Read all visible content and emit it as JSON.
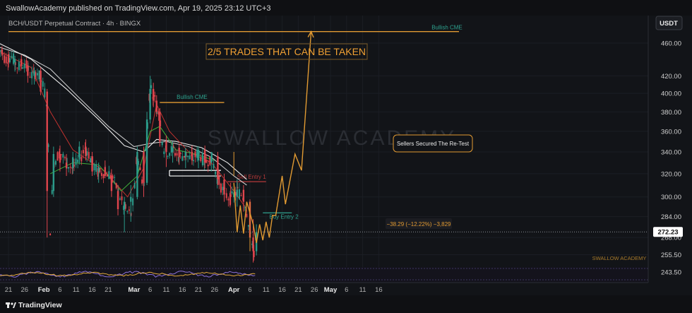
{
  "header": {
    "publisher_line": "SwallowAcademy published on TradingView.com, Apr 19, 2025 23:12 UTC+3",
    "symbol_line": "BCH/USDT Perpetual Contract · 4h · BINGX",
    "currency_button": "USDT"
  },
  "footer": {
    "brand": "TradingView"
  },
  "colors": {
    "background": "#121418",
    "candle_up": "#2b9b8a",
    "candle_down": "#e0454d",
    "ema_white": "#e8e8e8",
    "ema_red": "#c0322f",
    "ema_green": "#3fae3a",
    "projection": "#e19a32",
    "cme": "#2ea28f",
    "title_orange": "#f0a033",
    "level_white": "#ffffff",
    "sell_level": "#b73a3a",
    "buy_level": "#2ea28f"
  },
  "chart_data": {
    "type": "candlestick",
    "title": "2/5 TRADES THAT CAN BE TAKEN",
    "y_axis": {
      "ticks": [
        460.0,
        420.0,
        400.0,
        380.0,
        360.0,
        340.0,
        320.0,
        300.0,
        284.0,
        268.0,
        255.5,
        243.5
      ],
      "current_price": "272.23",
      "scale": "log"
    },
    "x_axis": {
      "ticks": [
        "21",
        "26",
        "Feb",
        "6",
        "11",
        "16",
        "21",
        "Mar",
        "6",
        "11",
        "16",
        "21",
        "26",
        "Apr",
        "6",
        "11",
        "16",
        "21",
        "26",
        "May",
        "6",
        "11",
        "16"
      ]
    },
    "annotations": {
      "bullish_cme_top": "Bullish CME",
      "bullish_cme_mid": "Bullish CME",
      "sellers_note": "Sellers Secured The Re-Test",
      "sell_entry": "Sell Entry 1",
      "buy_entry": "Buy Entry 2",
      "measure": "−38.29 (−12.22%) −3,829",
      "watermark": "SWALLOW ACADEMY"
    },
    "levels": {
      "bullish_cme_top": 475,
      "bullish_cme_mid": 390,
      "white_box_top": 323,
      "white_box_bottom": 318,
      "sell_entry": 313,
      "buy_entry": 287
    },
    "projection_path": [
      [
        "2025-04-01",
        312
      ],
      [
        "2025-04-02",
        272
      ],
      [
        "2025-04-03",
        293
      ],
      [
        "2025-04-04",
        271
      ],
      [
        "2025-04-05",
        296
      ],
      [
        "2025-04-07",
        278
      ],
      [
        "2025-04-08",
        264
      ],
      [
        "2025-04-09",
        278
      ],
      [
        "2025-04-10",
        266
      ],
      [
        "2025-04-11",
        280
      ],
      [
        "2025-04-12",
        268
      ],
      [
        "2025-04-13",
        285
      ],
      [
        "2025-04-14",
        285
      ],
      [
        "2025-04-16",
        318
      ],
      [
        "2025-04-17",
        294
      ],
      [
        "2025-04-20",
        338
      ],
      [
        "2025-04-22",
        323
      ],
      [
        "2025-04-25",
        475
      ]
    ],
    "price_path": [
      [
        "2025-01-18",
        455
      ],
      [
        "2025-01-20",
        440
      ],
      [
        "2025-01-22",
        443
      ],
      [
        "2025-01-24",
        430
      ],
      [
        "2025-01-26",
        436
      ],
      [
        "2025-01-28",
        420
      ],
      [
        "2025-01-30",
        425
      ],
      [
        "2025-02-01",
        405
      ],
      [
        "2025-02-02",
        390
      ],
      [
        "2025-02-03",
        270
      ],
      [
        "2025-02-04",
        330
      ],
      [
        "2025-02-06",
        340
      ],
      [
        "2025-02-08",
        330
      ],
      [
        "2025-02-10",
        325
      ],
      [
        "2025-02-12",
        332
      ],
      [
        "2025-02-14",
        345
      ],
      [
        "2025-02-16",
        330
      ],
      [
        "2025-02-18",
        320
      ],
      [
        "2025-02-20",
        322
      ],
      [
        "2025-02-22",
        318
      ],
      [
        "2025-02-24",
        305
      ],
      [
        "2025-02-26",
        290
      ],
      [
        "2025-02-28",
        285
      ],
      [
        "2025-03-01",
        300
      ],
      [
        "2025-03-02",
        340
      ],
      [
        "2025-03-03",
        320
      ],
      [
        "2025-03-04",
        310
      ],
      [
        "2025-03-05",
        360
      ],
      [
        "2025-03-06",
        410
      ],
      [
        "2025-03-07",
        400
      ],
      [
        "2025-03-08",
        385
      ],
      [
        "2025-03-09",
        375
      ],
      [
        "2025-03-10",
        345
      ],
      [
        "2025-03-11",
        340
      ],
      [
        "2025-03-13",
        342
      ],
      [
        "2025-03-15",
        335
      ],
      [
        "2025-03-17",
        338
      ],
      [
        "2025-03-19",
        332
      ],
      [
        "2025-03-21",
        340
      ],
      [
        "2025-03-23",
        330
      ],
      [
        "2025-03-25",
        335
      ],
      [
        "2025-03-27",
        315
      ],
      [
        "2025-03-29",
        303
      ],
      [
        "2025-03-31",
        298
      ],
      [
        "2025-04-02",
        305
      ],
      [
        "2025-04-04",
        300
      ],
      [
        "2025-04-06",
        275
      ],
      [
        "2025-04-07",
        252
      ],
      [
        "2025-04-08",
        272
      ]
    ],
    "ema_white_path": [
      [
        "2025-01-18",
        455
      ],
      [
        "2025-01-26",
        445
      ],
      [
        "2025-02-03",
        428
      ],
      [
        "2025-02-12",
        395
      ],
      [
        "2025-02-21",
        365
      ],
      [
        "2025-03-01",
        345
      ],
      [
        "2025-03-06",
        348
      ],
      [
        "2025-03-11",
        350
      ],
      [
        "2025-03-18",
        345
      ],
      [
        "2025-03-25",
        335
      ],
      [
        "2025-04-01",
        318
      ],
      [
        "2025-04-05",
        310
      ]
    ],
    "ema_white2_path": [
      [
        "2025-01-18",
        460
      ],
      [
        "2025-01-28",
        440
      ],
      [
        "2025-02-08",
        405
      ],
      [
        "2025-02-18",
        372
      ],
      [
        "2025-02-26",
        346
      ],
      [
        "2025-03-04",
        340
      ],
      [
        "2025-03-08",
        352
      ],
      [
        "2025-03-14",
        350
      ],
      [
        "2025-03-22",
        344
      ],
      [
        "2025-03-30",
        330
      ],
      [
        "2025-04-05",
        315
      ]
    ],
    "ema_red_path": [
      [
        "2025-01-18",
        450
      ],
      [
        "2025-01-28",
        430
      ],
      [
        "2025-02-03",
        380
      ],
      [
        "2025-02-10",
        342
      ],
      [
        "2025-02-20",
        322
      ],
      [
        "2025-02-27",
        300
      ],
      [
        "2025-03-04",
        325
      ],
      [
        "2025-03-08",
        388
      ],
      [
        "2025-03-12",
        360
      ],
      [
        "2025-03-18",
        340
      ],
      [
        "2025-03-25",
        330
      ],
      [
        "2025-04-01",
        305
      ],
      [
        "2025-04-05",
        290
      ]
    ],
    "ema_green_path": [
      [
        "2025-02-03",
        320
      ],
      [
        "2025-02-10",
        330
      ],
      [
        "2025-02-18",
        328
      ],
      [
        "2025-02-25",
        305
      ],
      [
        "2025-03-02",
        318
      ],
      [
        "2025-03-06",
        360
      ],
      [
        "2025-03-09",
        365
      ],
      [
        "2025-03-14",
        342
      ],
      [
        "2025-03-20",
        338
      ],
      [
        "2025-03-26",
        332
      ]
    ],
    "candles": [
      [
        "2025-01-19",
        452,
        456,
        444,
        446
      ],
      [
        "2025-01-21",
        446,
        450,
        430,
        436
      ],
      [
        "2025-01-23",
        436,
        444,
        425,
        440
      ],
      [
        "2025-01-25",
        440,
        445,
        428,
        432
      ],
      [
        "2025-01-27",
        432,
        438,
        412,
        420
      ],
      [
        "2025-01-29",
        420,
        430,
        410,
        426
      ],
      [
        "2025-01-31",
        426,
        430,
        398,
        402
      ],
      [
        "2025-02-02",
        402,
        405,
        268,
        305
      ],
      [
        "2025-02-04",
        305,
        345,
        300,
        338
      ],
      [
        "2025-02-06",
        338,
        346,
        322,
        330
      ],
      [
        "2025-02-08",
        330,
        338,
        318,
        325
      ],
      [
        "2025-02-10",
        325,
        340,
        320,
        335
      ],
      [
        "2025-02-12",
        335,
        350,
        330,
        345
      ],
      [
        "2025-02-14",
        345,
        352,
        332,
        336
      ],
      [
        "2025-02-16",
        336,
        340,
        318,
        322
      ],
      [
        "2025-02-18",
        322,
        330,
        312,
        326
      ],
      [
        "2025-02-20",
        326,
        332,
        316,
        318
      ],
      [
        "2025-02-22",
        318,
        324,
        300,
        305
      ],
      [
        "2025-02-24",
        305,
        310,
        285,
        290
      ],
      [
        "2025-02-26",
        290,
        300,
        272,
        296
      ],
      [
        "2025-02-28",
        296,
        310,
        280,
        300
      ],
      [
        "2025-03-02",
        300,
        345,
        298,
        340
      ],
      [
        "2025-03-04",
        340,
        345,
        300,
        312
      ],
      [
        "2025-03-05",
        312,
        380,
        310,
        372
      ],
      [
        "2025-03-06",
        372,
        420,
        368,
        405
      ],
      [
        "2025-03-07",
        405,
        412,
        385,
        392
      ],
      [
        "2025-03-08",
        392,
        398,
        375,
        380
      ],
      [
        "2025-03-09",
        380,
        384,
        345,
        350
      ],
      [
        "2025-03-11",
        350,
        356,
        326,
        340
      ],
      [
        "2025-03-13",
        340,
        350,
        330,
        344
      ],
      [
        "2025-03-15",
        344,
        348,
        328,
        335
      ],
      [
        "2025-03-17",
        335,
        344,
        325,
        340
      ],
      [
        "2025-03-19",
        340,
        346,
        328,
        332
      ],
      [
        "2025-03-21",
        332,
        345,
        325,
        342
      ],
      [
        "2025-03-23",
        342,
        346,
        325,
        330
      ],
      [
        "2025-03-25",
        330,
        340,
        322,
        336
      ],
      [
        "2025-03-27",
        336,
        340,
        310,
        315
      ],
      [
        "2025-03-29",
        315,
        320,
        296,
        302
      ],
      [
        "2025-03-31",
        302,
        312,
        294,
        300
      ],
      [
        "2025-04-02",
        300,
        315,
        292,
        306
      ],
      [
        "2025-04-04",
        306,
        310,
        288,
        296
      ],
      [
        "2025-04-06",
        296,
        298,
        262,
        268
      ],
      [
        "2025-04-07",
        268,
        282,
        250,
        258
      ],
      [
        "2025-04-08",
        258,
        278,
        255,
        272
      ]
    ]
  }
}
